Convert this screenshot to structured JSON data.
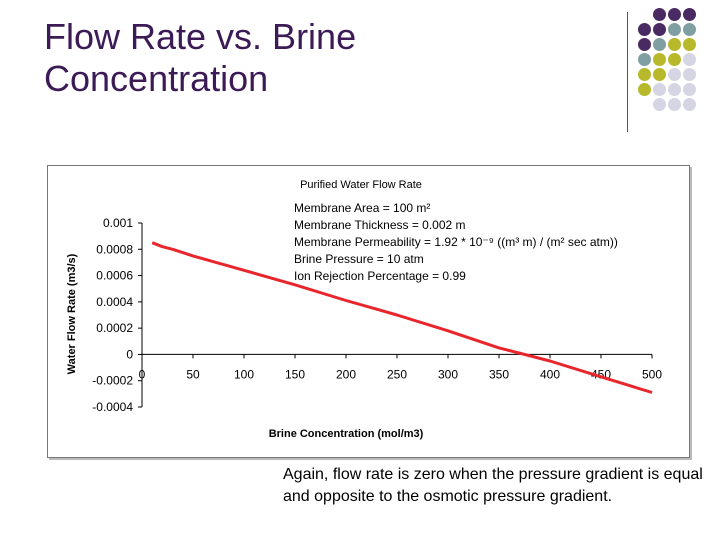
{
  "slide": {
    "title": "Flow Rate vs. Brine Concentration",
    "caption": "Again, flow rate is zero when the pressure gradient is equal and opposite to the osmotic pressure gradient."
  },
  "decoration": {
    "dot_colors": [
      "#4a2a63",
      "#7f9fa3",
      "#b7b82a",
      "#d5d5e3"
    ],
    "grid": [
      [
        -1,
        0,
        0,
        0
      ],
      [
        0,
        0,
        1,
        1
      ],
      [
        0,
        1,
        2,
        2
      ],
      [
        1,
        2,
        2,
        3
      ],
      [
        2,
        2,
        3,
        3
      ],
      [
        2,
        3,
        3,
        3
      ],
      [
        -1,
        3,
        3,
        3
      ]
    ]
  },
  "chart_data": {
    "type": "line",
    "title": "Purified Water Flow Rate",
    "xlabel": "Brine Concentration (mol/m3)",
    "ylabel": "Water Flow Rate (m3/s)",
    "xlim": [
      0,
      500
    ],
    "ylim": [
      -0.0004,
      0.001
    ],
    "x_ticks": [
      "0",
      "50",
      "100",
      "150",
      "200",
      "250",
      "300",
      "350",
      "400",
      "450",
      "500"
    ],
    "y_ticks": [
      "0.001",
      "0.0008",
      "0.0006",
      "0.0004",
      "0.0002",
      "0",
      "-0.0002",
      "-0.0004"
    ],
    "grid": false,
    "line_color": "#e8262c",
    "series": [
      {
        "x": [
          10,
          20,
          30,
          50,
          100,
          150,
          200,
          250,
          300,
          350,
          400,
          450,
          500
        ],
        "values": [
          0.00085,
          0.00082,
          0.0008,
          0.00075,
          0.00064,
          0.00053,
          0.00041,
          0.0003,
          0.00018,
          5e-05,
          -5e-05,
          -0.00017,
          -0.00029
        ]
      }
    ],
    "annotations": [
      "Membrane Area = 100 m²",
      "Membrane Thickness = 0.002 m",
      "Membrane Permeability = 1.92 * 10⁻⁹ ((m³ m) / (m² sec atm))",
      "Brine Pressure = 10 atm",
      "Ion Rejection Percentage = 0.99"
    ]
  }
}
